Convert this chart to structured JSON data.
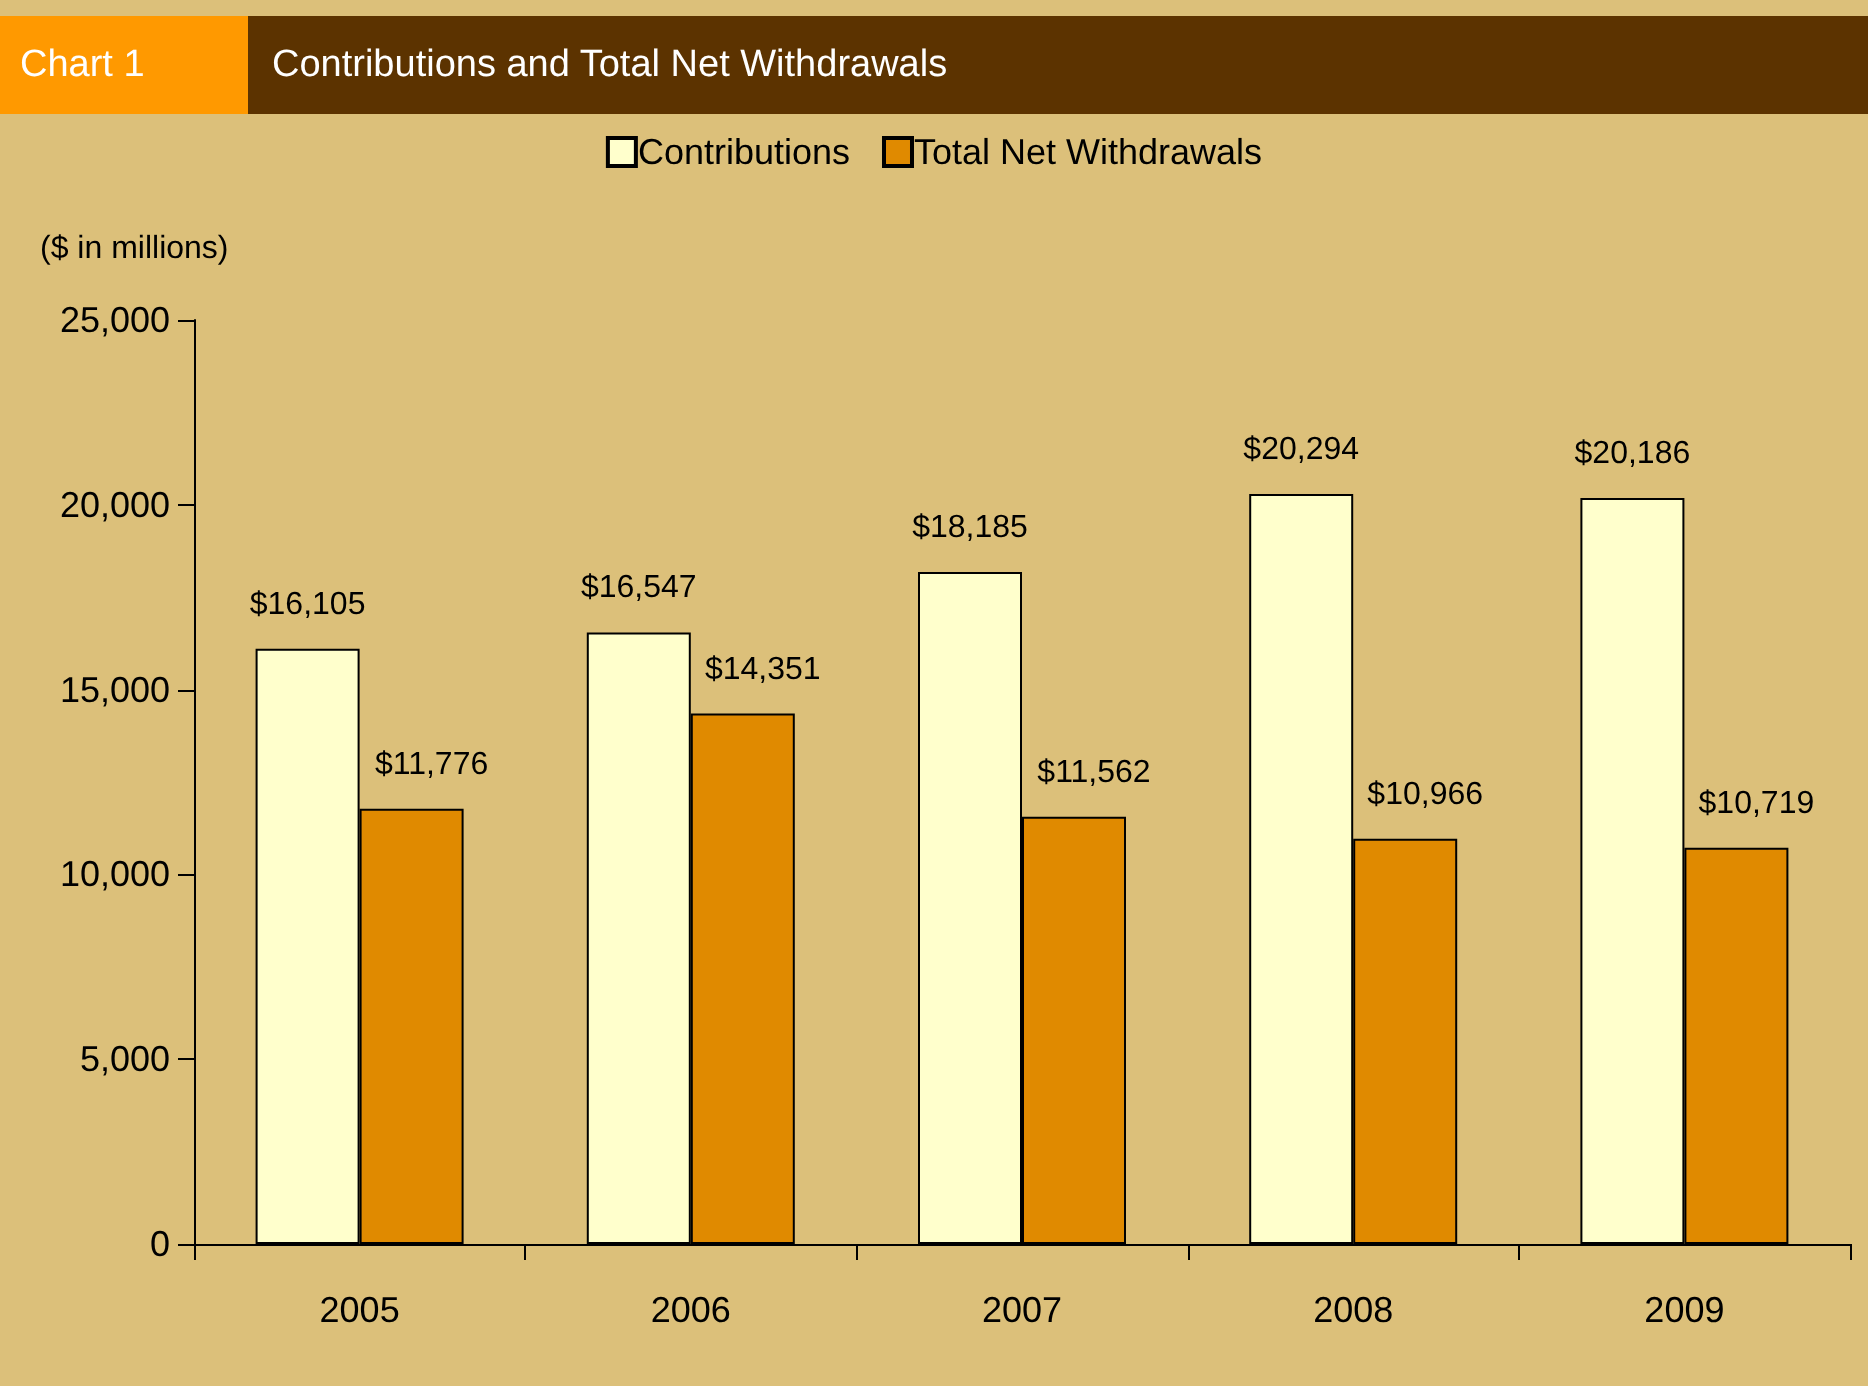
{
  "chart_data": {
    "type": "bar",
    "title": "Contributions and Total Net Withdrawals",
    "ylabel": "($ in millions)",
    "annotations": [
      "Chart 1"
    ],
    "categories": [
      "2005",
      "2006",
      "2007",
      "2008",
      "2009"
    ],
    "series": [
      {
        "name": "Contributions",
        "color": "#ffffcc",
        "values": [
          16105,
          16547,
          18185,
          20294,
          20186
        ],
        "value_labels": [
          "$16,105",
          "$16,547",
          "$18,185",
          "$20,294",
          "$20,186"
        ]
      },
      {
        "name": "Total Net Withdrawals",
        "color": "#e08a00",
        "values": [
          11776,
          14351,
          11562,
          10966,
          10719
        ],
        "value_labels": [
          "$11,776",
          "$14,351",
          "$11,562",
          "$10,966",
          "$10,719"
        ]
      }
    ],
    "ylim": [
      0,
      25000
    ],
    "yticks": [
      0,
      {
        "value": 5000,
        "label": "5,000"
      },
      {
        "value": 10000,
        "label": "10,000"
      },
      {
        "value": 15000,
        "label": "15,000"
      },
      {
        "value": 20000,
        "label": "20,000"
      },
      {
        "value": 25000,
        "label": "25,000"
      }
    ],
    "grid": false,
    "legend": "top"
  }
}
